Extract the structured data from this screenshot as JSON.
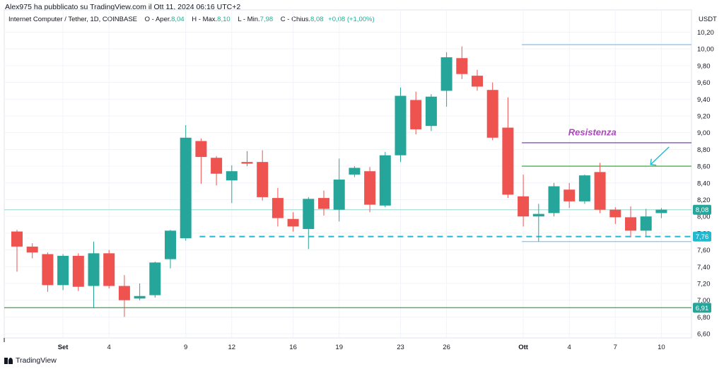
{
  "publish_line": "Alex975 ha pubblicato su TradingView.com il Ott 11, 2024 06:16 UTC+2",
  "header": {
    "symbol": "Internet Computer / Tether, 1D, COINBASE",
    "open_label": "O - Aper.",
    "open_value": "8,04",
    "high_label": "H - Max.",
    "high_value": "8,10",
    "low_label": "L - Min.",
    "low_value": "7,98",
    "close_label": "C - Chius.",
    "close_value": "8,08",
    "change": "+0,08 (+1,00%)"
  },
  "currency": "USDT",
  "footer_brand": "TradingView",
  "colors": {
    "up": "#26a69a",
    "down": "#ef5350",
    "grid": "#f0f3fa",
    "resistance_line": "#7e57c2",
    "green_line": "#4caf50",
    "dashed_support": "#22b8cf",
    "label_text": "#ab47bc",
    "light_line": "#90caf9"
  },
  "chart_data": {
    "type": "candlestick",
    "title": "Internet Computer / Tether, 1D, COINBASE",
    "x_axis_ticks": [
      {
        "label": "Set",
        "index": 3,
        "bold": true
      },
      {
        "label": "4",
        "index": 6
      },
      {
        "label": "9",
        "index": 11
      },
      {
        "label": "12",
        "index": 14
      },
      {
        "label": "16",
        "index": 18
      },
      {
        "label": "19",
        "index": 21
      },
      {
        "label": "23",
        "index": 25
      },
      {
        "label": "26",
        "index": 28
      },
      {
        "label": "Ott",
        "index": 33,
        "bold": true
      },
      {
        "label": "4",
        "index": 36
      },
      {
        "label": "7",
        "index": 39
      },
      {
        "label": "10",
        "index": 42
      }
    ],
    "y_axis_ticks": [
      "10,20",
      "10,00",
      "9,80",
      "9,60",
      "9,40",
      "9,20",
      "9,00",
      "8,80",
      "8,60",
      "8,40",
      "8,20",
      "8,00",
      "7,80",
      "7,60",
      "7,40",
      "7,20",
      "7,00",
      "6,80",
      "6,60"
    ],
    "ylim": [
      6.55,
      10.28
    ],
    "candles": [
      {
        "o": 7.82,
        "h": 7.84,
        "l": 7.34,
        "c": 7.64
      },
      {
        "o": 7.64,
        "h": 7.68,
        "l": 7.5,
        "c": 7.57
      },
      {
        "o": 7.55,
        "h": 7.57,
        "l": 7.1,
        "c": 7.18
      },
      {
        "o": 7.18,
        "h": 7.55,
        "l": 7.12,
        "c": 7.53
      },
      {
        "o": 7.53,
        "h": 7.56,
        "l": 7.11,
        "c": 7.16
      },
      {
        "o": 7.17,
        "h": 7.7,
        "l": 6.91,
        "c": 7.56
      },
      {
        "o": 7.56,
        "h": 7.6,
        "l": 7.14,
        "c": 7.17
      },
      {
        "o": 7.17,
        "h": 7.3,
        "l": 6.8,
        "c": 7.0
      },
      {
        "o": 7.02,
        "h": 7.2,
        "l": 7.0,
        "c": 7.05
      },
      {
        "o": 7.06,
        "h": 7.46,
        "l": 7.03,
        "c": 7.45
      },
      {
        "o": 7.49,
        "h": 7.84,
        "l": 7.38,
        "c": 7.83
      },
      {
        "o": 7.74,
        "h": 9.09,
        "l": 7.71,
        "c": 8.94
      },
      {
        "o": 8.9,
        "h": 8.93,
        "l": 8.39,
        "c": 8.71
      },
      {
        "o": 8.7,
        "h": 8.72,
        "l": 8.37,
        "c": 8.51
      },
      {
        "o": 8.43,
        "h": 8.61,
        "l": 8.16,
        "c": 8.54
      },
      {
        "o": 8.65,
        "h": 8.78,
        "l": 8.6,
        "c": 8.63
      },
      {
        "o": 8.65,
        "h": 8.79,
        "l": 8.19,
        "c": 8.23
      },
      {
        "o": 8.22,
        "h": 8.34,
        "l": 7.88,
        "c": 7.98
      },
      {
        "o": 7.97,
        "h": 8.05,
        "l": 7.82,
        "c": 7.88
      },
      {
        "o": 7.85,
        "h": 8.23,
        "l": 7.61,
        "c": 8.21
      },
      {
        "o": 8.22,
        "h": 8.31,
        "l": 8.01,
        "c": 8.09
      },
      {
        "o": 8.08,
        "h": 8.69,
        "l": 7.94,
        "c": 8.44
      },
      {
        "o": 8.5,
        "h": 8.6,
        "l": 8.47,
        "c": 8.58
      },
      {
        "o": 8.54,
        "h": 8.59,
        "l": 8.05,
        "c": 8.14
      },
      {
        "o": 8.13,
        "h": 8.77,
        "l": 8.11,
        "c": 8.73
      },
      {
        "o": 8.73,
        "h": 9.54,
        "l": 8.65,
        "c": 9.44
      },
      {
        "o": 9.39,
        "h": 9.49,
        "l": 8.98,
        "c": 9.04
      },
      {
        "o": 9.08,
        "h": 9.46,
        "l": 9.02,
        "c": 9.43
      },
      {
        "o": 9.5,
        "h": 9.96,
        "l": 9.31,
        "c": 9.9
      },
      {
        "o": 9.89,
        "h": 10.03,
        "l": 9.64,
        "c": 9.7
      },
      {
        "o": 9.68,
        "h": 9.75,
        "l": 9.5,
        "c": 9.55
      },
      {
        "o": 9.51,
        "h": 9.6,
        "l": 8.91,
        "c": 8.94
      },
      {
        "o": 9.06,
        "h": 9.42,
        "l": 8.22,
        "c": 8.26
      },
      {
        "o": 8.24,
        "h": 8.5,
        "l": 7.88,
        "c": 8.0
      },
      {
        "o": 8.0,
        "h": 8.15,
        "l": 7.7,
        "c": 8.03
      },
      {
        "o": 8.04,
        "h": 8.4,
        "l": 8.0,
        "c": 8.36
      },
      {
        "o": 8.32,
        "h": 8.4,
        "l": 8.1,
        "c": 8.18
      },
      {
        "o": 8.18,
        "h": 8.5,
        "l": 8.15,
        "c": 8.49
      },
      {
        "o": 8.53,
        "h": 8.64,
        "l": 8.04,
        "c": 8.08
      },
      {
        "o": 8.08,
        "h": 8.11,
        "l": 7.91,
        "c": 7.99
      },
      {
        "o": 7.99,
        "h": 8.12,
        "l": 7.75,
        "c": 7.83
      },
      {
        "o": 7.83,
        "h": 8.09,
        "l": 7.76,
        "c": 8.0
      },
      {
        "o": 8.04,
        "h": 8.1,
        "l": 7.98,
        "c": 8.08
      }
    ],
    "lines": [
      {
        "name": "resistance-line",
        "price": 8.88,
        "from": 33,
        "to": 44,
        "color": "#7e57c2",
        "style": "solid"
      },
      {
        "name": "upper-light-line",
        "price": 10.05,
        "from": 33,
        "to": 44,
        "color": "#90caf9",
        "style": "solid"
      },
      {
        "name": "green-resistance-line",
        "price": 8.6,
        "from": 33,
        "to": 44,
        "color": "#4caf50",
        "style": "solid"
      },
      {
        "name": "lower-light-line",
        "price": 7.7,
        "from": 33,
        "to": 44,
        "color": "#90caf9",
        "style": "solid"
      },
      {
        "name": "dashed-support-line",
        "price": 7.76,
        "from": 12,
        "to": 44,
        "color": "#22b8cf",
        "style": "dashed"
      },
      {
        "name": "bottom-support-line",
        "price": 6.91,
        "from": -1,
        "to": 44,
        "color": "#4caf50",
        "style": "solid"
      },
      {
        "name": "current-price-line",
        "price": 8.08,
        "from": -1,
        "to": 44,
        "color": "#b2dfdb",
        "style": "solid"
      }
    ],
    "annotation": {
      "text": "Resistenza",
      "price": 9.0,
      "index": 37.5
    },
    "arrow": {
      "from_price": 8.83,
      "from_index": 42.5,
      "to_price": 8.62,
      "to_index": 41.3
    },
    "price_labels": [
      {
        "text": "8,08",
        "price": 8.08,
        "color": "#26a69a"
      },
      {
        "text": "7,76",
        "price": 7.76,
        "color": "#22b8cf"
      },
      {
        "text": "6,91",
        "price": 6.91,
        "color": "#26a69a"
      }
    ]
  }
}
